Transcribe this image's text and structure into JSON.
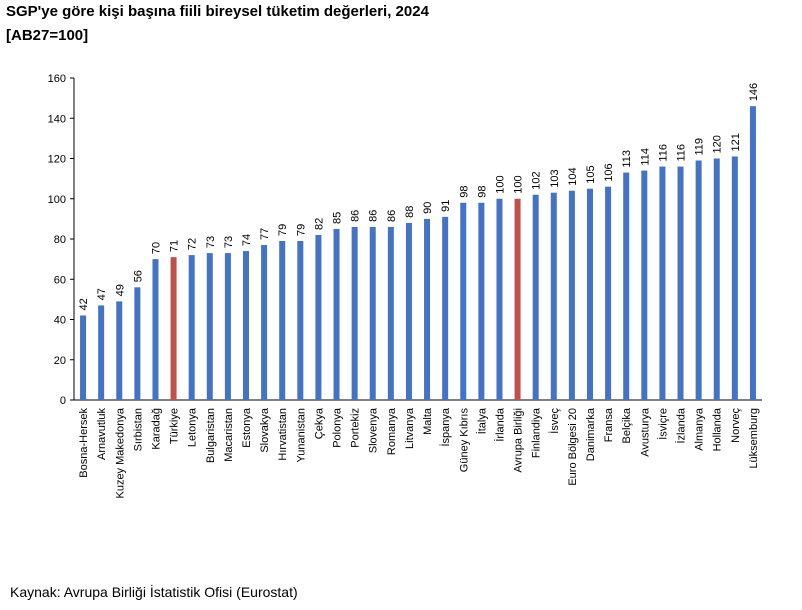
{
  "chart_data": {
    "type": "bar",
    "title": "SGP'ye göre kişi başına fiili bireysel tüketim değerleri, 2024",
    "subtitle": "[AB27=100]",
    "source": "Kaynak: Avrupa Birliği İstatistik Ofisi (Eurostat)",
    "categories": [
      "Bosna-Hersek",
      "Arnavutluk",
      "Kuzey Makedonya",
      "Sırbistan",
      "Karadağ",
      "Türkiye",
      "Letonya",
      "Bulgaristan",
      "Macaristan",
      "Estonya",
      "Slovakya",
      "Hırvatistan",
      "Yunanistan",
      "Çekya",
      "Polonya",
      "Portekiz",
      "Slovenya",
      "Romanya",
      "Litvanya",
      "Malta",
      "İspanya",
      "Güney Kıbrıs",
      "İtalya",
      "İrlanda",
      "Avrupa Birliği",
      "Finlandiya",
      "İsveç",
      "Euro Bölgesi 20",
      "Danimarka",
      "Fransa",
      "Belçika",
      "Avusturya",
      "İsviçre",
      "İzlanda",
      "Almanya",
      "Hollanda",
      "Norveç",
      "Lüksemburg"
    ],
    "values": [
      42,
      47,
      49,
      56,
      70,
      71,
      72,
      73,
      73,
      74,
      77,
      79,
      79,
      82,
      85,
      86,
      86,
      86,
      88,
      90,
      91,
      98,
      98,
      100,
      100,
      102,
      103,
      104,
      105,
      106,
      113,
      114,
      116,
      116,
      119,
      120,
      121,
      146
    ],
    "colors": [
      "#4472c4",
      "#4472c4",
      "#4472c4",
      "#4472c4",
      "#4472c4",
      "#c0504d",
      "#4472c4",
      "#4472c4",
      "#4472c4",
      "#4472c4",
      "#4472c4",
      "#4472c4",
      "#4472c4",
      "#4472c4",
      "#4472c4",
      "#4472c4",
      "#4472c4",
      "#4472c4",
      "#4472c4",
      "#4472c4",
      "#4472c4",
      "#4472c4",
      "#4472c4",
      "#4472c4",
      "#c0504d",
      "#4472c4",
      "#4472c4",
      "#4472c4",
      "#4472c4",
      "#4472c4",
      "#4472c4",
      "#4472c4",
      "#4472c4",
      "#4472c4",
      "#4472c4",
      "#4472c4",
      "#4472c4",
      "#4472c4"
    ],
    "ylim": [
      0,
      160
    ],
    "yticks": [
      0,
      20,
      40,
      60,
      80,
      100,
      120,
      140,
      160
    ],
    "grid": false
  }
}
